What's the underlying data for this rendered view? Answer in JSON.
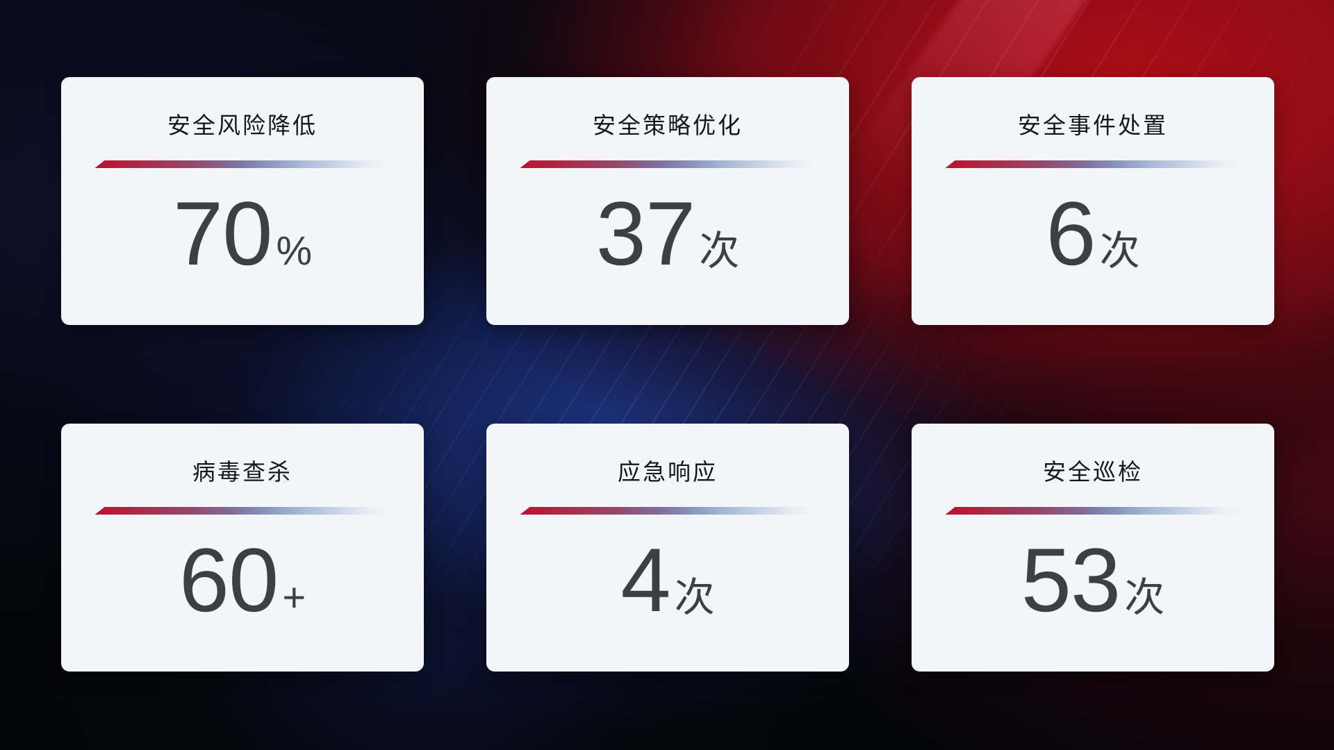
{
  "theme": {
    "background_base": "#04050c",
    "background_red_glow": "#a80d15",
    "background_blue_glow": "#1e3482",
    "card_background": "#f4f5f9",
    "title_color": "#15171c",
    "value_color": "#3c3f45",
    "divider_red": "#c10f31",
    "divider_blue": "#a9bad6"
  },
  "cards": [
    {
      "title": "安全风险降低",
      "value": "70",
      "unit": "%"
    },
    {
      "title": "安全策略优化",
      "value": "37",
      "unit": "次"
    },
    {
      "title": "安全事件处置",
      "value": "6",
      "unit": "次"
    },
    {
      "title": "病毒查杀",
      "value": "60",
      "unit": "+"
    },
    {
      "title": "应急响应",
      "value": "4",
      "unit": "次"
    },
    {
      "title": "安全巡检",
      "value": "53",
      "unit": "次"
    }
  ]
}
